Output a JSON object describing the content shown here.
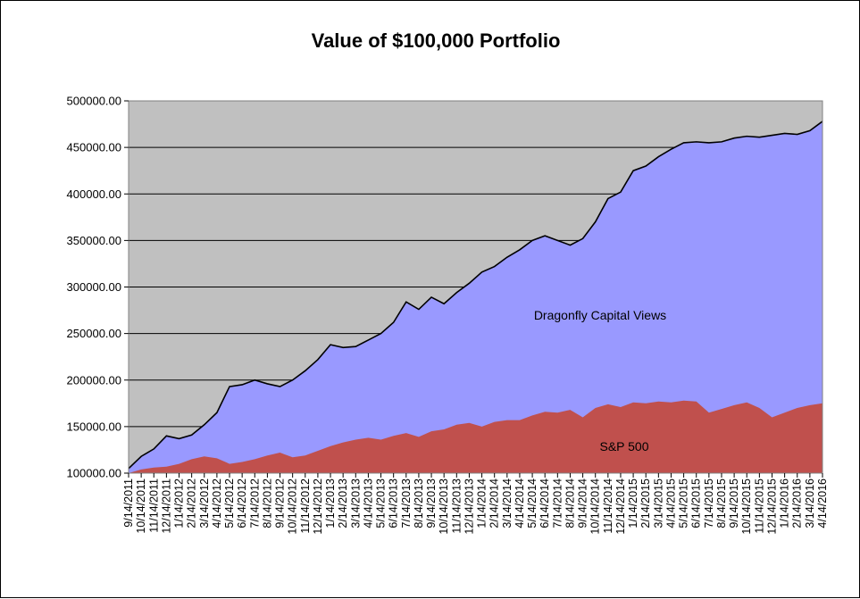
{
  "chart_data": {
    "type": "area",
    "title": "Value of $100,000 Portfolio",
    "xlabel": "",
    "ylabel": "",
    "ylim": [
      100000,
      500000
    ],
    "y_ticks": [
      "100000.00",
      "150000.00",
      "200000.00",
      "250000.00",
      "300000.00",
      "350000.00",
      "400000.00",
      "450000.00",
      "500000.00"
    ],
    "x_ticks": [
      "9/14/2011",
      "10/14/2011",
      "11/14/2011",
      "12/14/2011",
      "1/14/2012",
      "2/14/2012",
      "3/14/2012",
      "4/14/2012",
      "5/14/2012",
      "6/14/2012",
      "7/14/2012",
      "8/14/2012",
      "9/14/2012",
      "10/14/2012",
      "11/14/2012",
      "12/14/2012",
      "1/14/2013",
      "2/14/2013",
      "3/14/2013",
      "4/14/2013",
      "5/14/2013",
      "6/14/2013",
      "7/14/2013",
      "8/14/2013",
      "9/14/2013",
      "10/14/2013",
      "11/14/2013",
      "12/14/2013",
      "1/14/2014",
      "2/14/2014",
      "3/14/2014",
      "4/14/2014",
      "5/14/2014",
      "6/14/2014",
      "7/14/2014",
      "8/14/2014",
      "9/14/2014",
      "10/14/2014",
      "11/14/2014",
      "12/14/2014",
      "1/14/2015",
      "2/14/2015",
      "3/14/2015",
      "4/14/2015",
      "5/14/2015",
      "6/14/2015",
      "7/14/2015",
      "8/14/2015",
      "9/14/2015",
      "10/14/2015",
      "11/14/2015",
      "12/14/2015",
      "1/14/2016",
      "2/14/2016",
      "3/14/2016",
      "4/14/2016"
    ],
    "series": [
      {
        "name": "Dragonfly Capital Views",
        "color": "#9999FF",
        "line_color": "#000000",
        "values": [
          105000,
          118000,
          126000,
          140000,
          137000,
          141000,
          152000,
          165000,
          193000,
          195000,
          200000,
          196000,
          193000,
          200000,
          210000,
          222000,
          238000,
          235000,
          236000,
          243000,
          250000,
          262000,
          284000,
          276000,
          289000,
          282000,
          294000,
          304000,
          316000,
          322000,
          332000,
          340000,
          350000,
          355000,
          350000,
          345000,
          352000,
          370000,
          395000,
          402000,
          425000,
          430000,
          440000,
          448000,
          455000,
          456000,
          455000,
          456000,
          460000,
          462000,
          461000,
          463000,
          465000,
          464000,
          468000,
          478000
        ]
      },
      {
        "name": "S&P 500",
        "color": "#C0504D",
        "values": [
          100000,
          104000,
          106000,
          107000,
          110000,
          115000,
          118000,
          116000,
          110000,
          112000,
          115000,
          119000,
          122000,
          117000,
          119000,
          124000,
          129000,
          133000,
          136000,
          138000,
          136000,
          140000,
          143000,
          139000,
          145000,
          147000,
          152000,
          154000,
          150000,
          155000,
          157000,
          157000,
          162000,
          166000,
          165000,
          168000,
          160000,
          170000,
          174000,
          171000,
          176000,
          175000,
          177000,
          176000,
          178000,
          177000,
          165000,
          169000,
          173000,
          176000,
          170000,
          160000,
          165000,
          170000,
          173000,
          175000
        ]
      }
    ]
  }
}
